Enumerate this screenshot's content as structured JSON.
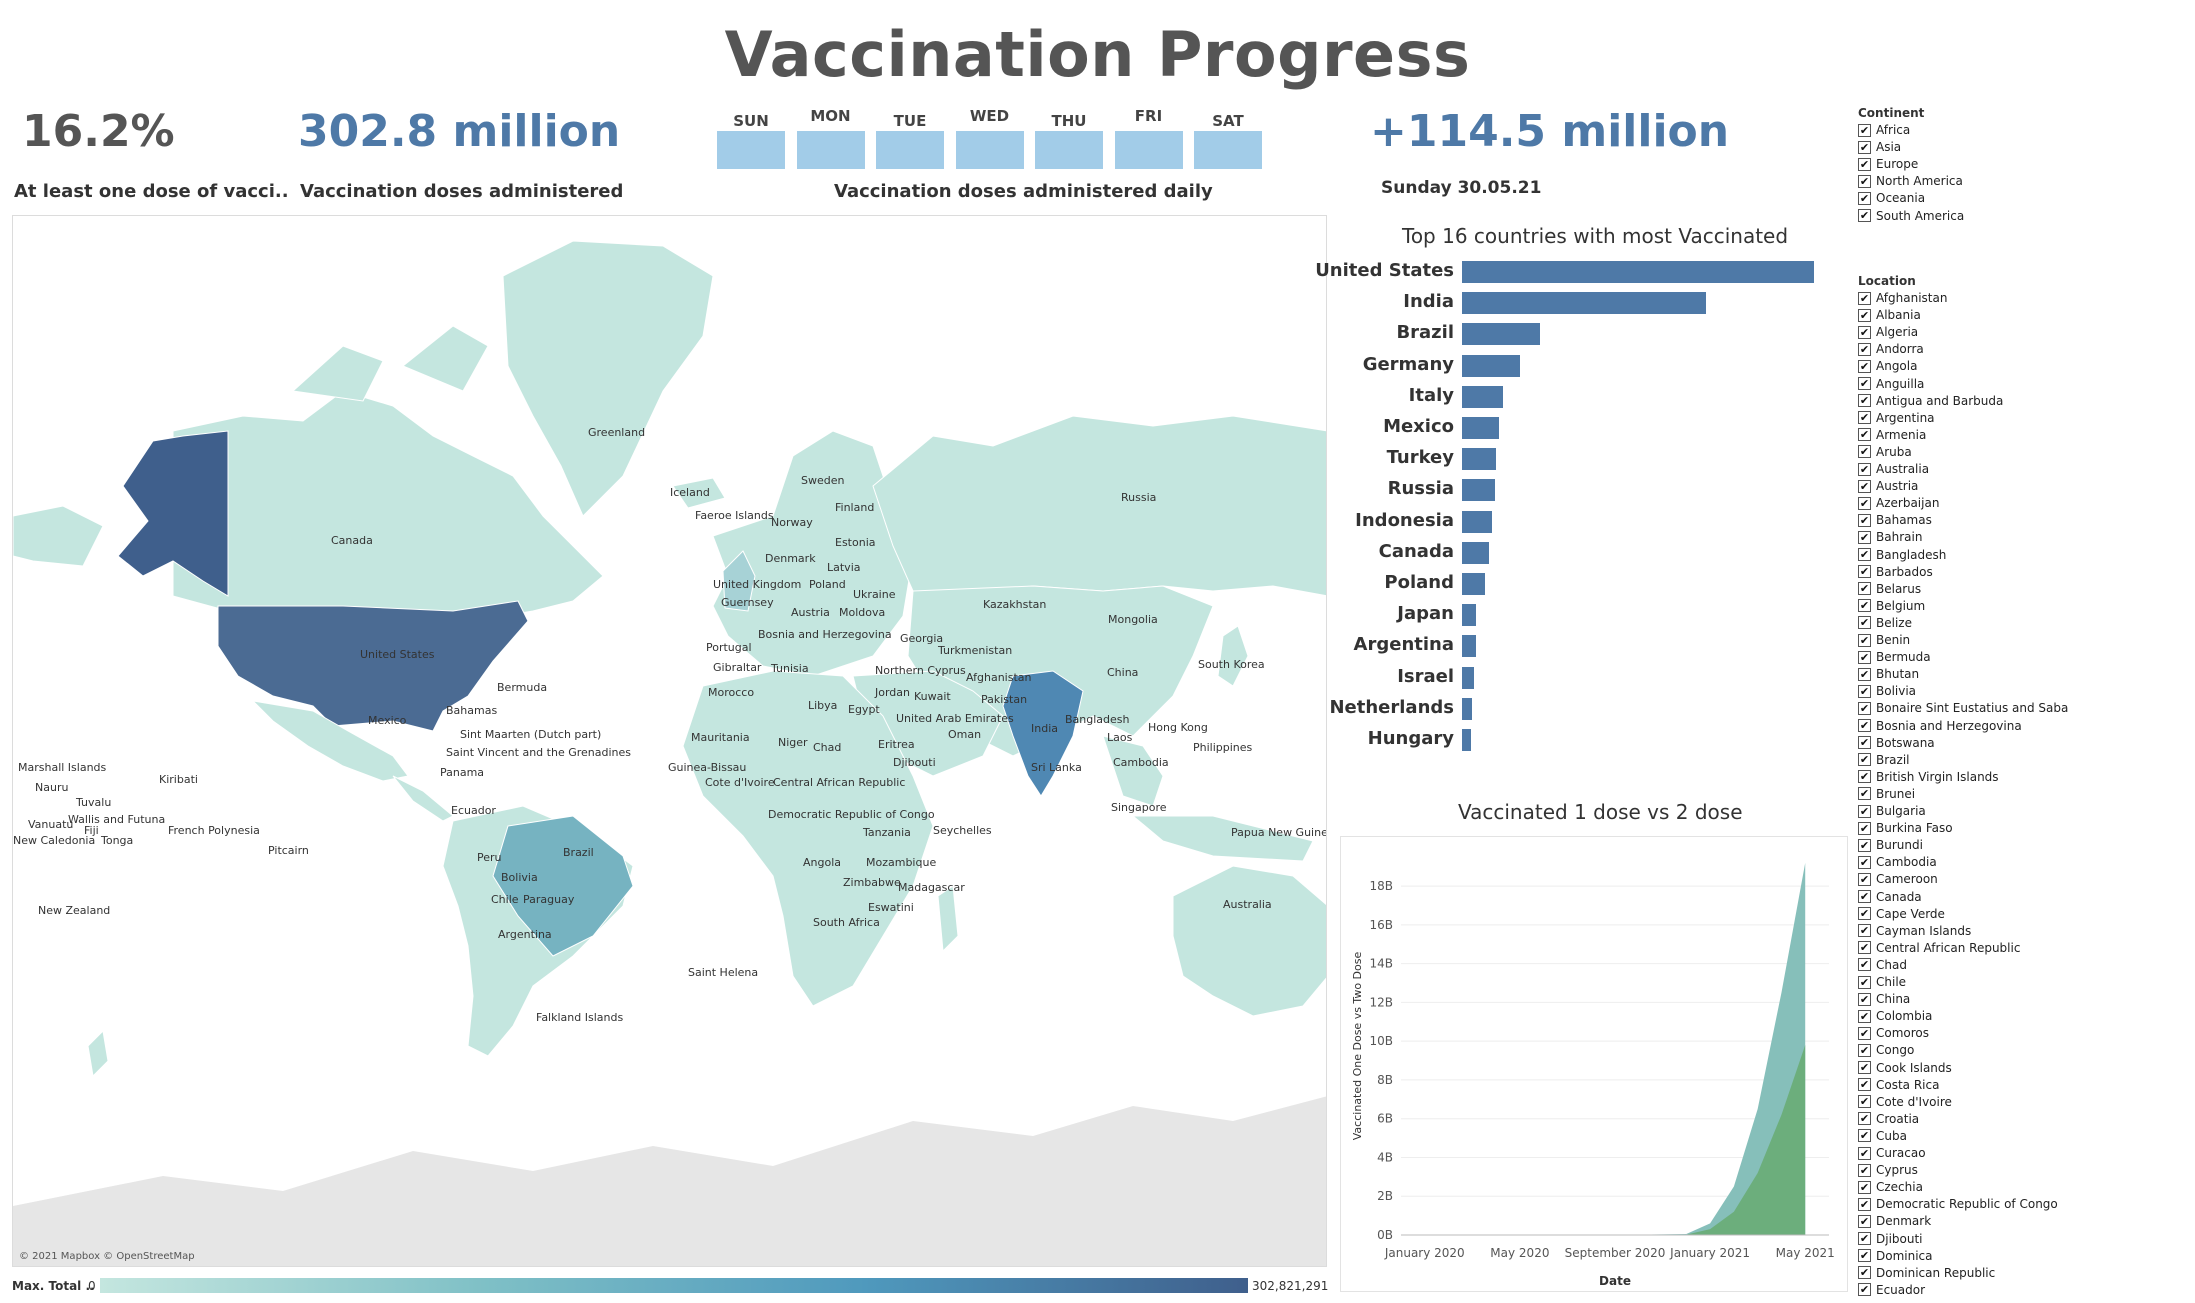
{
  "header": {
    "title": "Vaccination Progress"
  },
  "kpis": {
    "one_dose_value": "16.2%",
    "one_dose_label": "At least one dose of vacci..",
    "doses_value": "302.8 million",
    "doses_label": "Vaccination doses administered",
    "daily_label": "Vaccination doses administered daily",
    "delta_value": "+114.5 million",
    "delta_date": "Sunday 30.05.21"
  },
  "days": [
    "SUN",
    "MON",
    "TUE",
    "WED",
    "THU",
    "FRI",
    "SAT"
  ],
  "colors": {
    "accent": "#4e79a7",
    "map_low": "#c4e6df",
    "map_high": "#3f5f8c",
    "one_dose": "#7fbcb6",
    "two_dose": "#6aad78"
  },
  "map": {
    "attribution": "© 2021 Mapbox © OpenStreetMap",
    "legend_label": "Max. Total ..",
    "legend_min": "0",
    "legend_max": "302,821,291",
    "labels": [
      "Greenland",
      "Iceland",
      "Faeroe Islands",
      "Sweden",
      "Finland",
      "Norway",
      "Estonia",
      "Latvia",
      "Denmark",
      "United Kingdom",
      "Guernsey",
      "Poland",
      "Austria",
      "Moldova",
      "Ukraine",
      "Bosnia and Herzegovina",
      "Portugal",
      "Gibraltar",
      "Tunisia",
      "Georgia",
      "Turkmenistan",
      "Kazakhstan",
      "Mongolia",
      "Russia",
      "China",
      "South Korea",
      "Morocco",
      "Libya",
      "Egypt",
      "Northern Cyprus",
      "Jordan",
      "Kuwait",
      "Afghanistan",
      "Pakistan",
      "United Arab Emirates",
      "Oman",
      "Mauritania",
      "Niger",
      "Chad",
      "Eritrea",
      "Djibouti",
      "Guinea-Bissau",
      "Cote d'Ivoire",
      "Central African Republic",
      "Democratic Republic of Congo",
      "Seychelles",
      "Tanzania",
      "Angola",
      "Mozambique",
      "Zimbabwe",
      "Madagascar",
      "Eswatini",
      "South Africa",
      "Saint Helena",
      "India",
      "Bangladesh",
      "Sri Lanka",
      "Laos",
      "Hong Kong",
      "Philippines",
      "Cambodia",
      "Singapore",
      "Papua New Guinea",
      "Australia",
      "Canada",
      "United States",
      "Bermuda",
      "Mexico",
      "Bahamas",
      "Sint Maarten (Dutch part)",
      "Saint Vincent and the Grenadines",
      "Panama",
      "Ecuador",
      "Brazil",
      "Peru",
      "Bolivia",
      "Chile",
      "Paraguay",
      "Argentina",
      "Falkland Islands",
      "Marshall Islands",
      "Nauru",
      "Kiribati",
      "Tuvalu",
      "Wallis and Futuna",
      "Vanuatu",
      "Fiji",
      "New Caledonia",
      "Tonga",
      "French Polynesia",
      "Pitcairn",
      "New Zealand"
    ]
  },
  "bar_chart": {
    "title": "Top 16 countries with most Vaccinated",
    "chart_data": {
      "type": "bar",
      "orientation": "horizontal",
      "categories": [
        "United States",
        "India",
        "Brazil",
        "Germany",
        "Italy",
        "Mexico",
        "Turkey",
        "Russia",
        "Indonesia",
        "Canada",
        "Poland",
        "Japan",
        "Argentina",
        "Israel",
        "Netherlands",
        "Hungary"
      ],
      "values": [
        302821291,
        210000000,
        67000000,
        50000000,
        35000000,
        32000000,
        29000000,
        28000000,
        26000000,
        23000000,
        20000000,
        12000000,
        12000000,
        10000000,
        9000000,
        8000000
      ]
    }
  },
  "area_chart": {
    "title": "Vaccinated 1 dose vs 2 dose",
    "chart_data": {
      "type": "area",
      "xlabel": "Date",
      "ylabel": "Vaccinated One Dose vs Two Dose",
      "x_ticks": [
        "January 2020",
        "May 2020",
        "September 2020",
        "January 2021",
        "May 2021"
      ],
      "y_ticks": [
        "0B",
        "2B",
        "4B",
        "6B",
        "8B",
        "10B",
        "12B",
        "14B",
        "16B",
        "18B"
      ],
      "ylim": [
        0,
        19.5
      ],
      "x": [
        "2020-01",
        "2020-05",
        "2020-09",
        "2020-12",
        "2021-01",
        "2021-02",
        "2021-03",
        "2021-04",
        "2021-05"
      ],
      "series": [
        {
          "name": "One Dose",
          "values": [
            0,
            0,
            0,
            0.05,
            0.6,
            2.5,
            6.5,
            12.5,
            19.2
          ]
        },
        {
          "name": "Two Dose",
          "values": [
            0,
            0,
            0,
            0.02,
            0.3,
            1.2,
            3.2,
            6.2,
            9.8
          ]
        }
      ]
    }
  },
  "filters": {
    "continent_title": "Continent",
    "continents": [
      "Africa",
      "Asia",
      "Europe",
      "North America",
      "Oceania",
      "South America"
    ],
    "location_title": "Location",
    "locations": [
      "Afghanistan",
      "Albania",
      "Algeria",
      "Andorra",
      "Angola",
      "Anguilla",
      "Antigua and Barbuda",
      "Argentina",
      "Armenia",
      "Aruba",
      "Australia",
      "Austria",
      "Azerbaijan",
      "Bahamas",
      "Bahrain",
      "Bangladesh",
      "Barbados",
      "Belarus",
      "Belgium",
      "Belize",
      "Benin",
      "Bermuda",
      "Bhutan",
      "Bolivia",
      "Bonaire Sint Eustatius and Saba",
      "Bosnia and Herzegovina",
      "Botswana",
      "Brazil",
      "British Virgin Islands",
      "Brunei",
      "Bulgaria",
      "Burkina Faso",
      "Burundi",
      "Cambodia",
      "Cameroon",
      "Canada",
      "Cape Verde",
      "Cayman Islands",
      "Central African Republic",
      "Chad",
      "Chile",
      "China",
      "Colombia",
      "Comoros",
      "Congo",
      "Cook Islands",
      "Costa Rica",
      "Cote d'Ivoire",
      "Croatia",
      "Cuba",
      "Curacao",
      "Cyprus",
      "Czechia",
      "Democratic Republic of Congo",
      "Denmark",
      "Djibouti",
      "Dominica",
      "Dominican Republic",
      "Ecuador"
    ]
  }
}
